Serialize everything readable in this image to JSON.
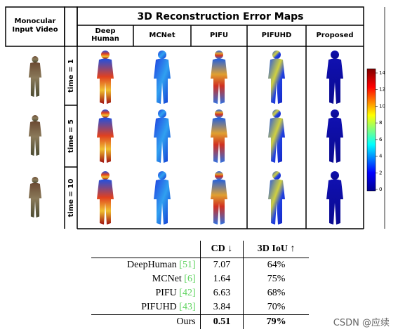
{
  "header": {
    "title": "3D Reconstruction Error Maps",
    "input_label": "Monocular Input Video"
  },
  "methods": [
    "Deep Human",
    "MCNet",
    "PIFU",
    "PIFUHD",
    "Proposed"
  ],
  "rows": [
    "time = 1",
    "time = 5",
    "time = 10"
  ],
  "colorbar_ticks": [
    "14",
    "12",
    "10",
    "8",
    "6",
    "4",
    "2",
    "0"
  ],
  "table": {
    "headers": [
      "CD ↓",
      "3D IoU ↑"
    ],
    "rows": [
      {
        "method": "DeepHuman",
        "ref": "[51]",
        "cd": "7.07",
        "iou": "64%"
      },
      {
        "method": "MCNet",
        "ref": "[6]",
        "cd": "1.64",
        "iou": "75%"
      },
      {
        "method": "PIFU",
        "ref": "[42]",
        "cd": "6.63",
        "iou": "68%"
      },
      {
        "method": "PIFUHD",
        "ref": "[43]",
        "cd": "3.84",
        "iou": "70%"
      },
      {
        "method": "Ours",
        "cd": "0.51",
        "iou": "79%"
      }
    ]
  },
  "watermark": "CSDN @应续"
}
